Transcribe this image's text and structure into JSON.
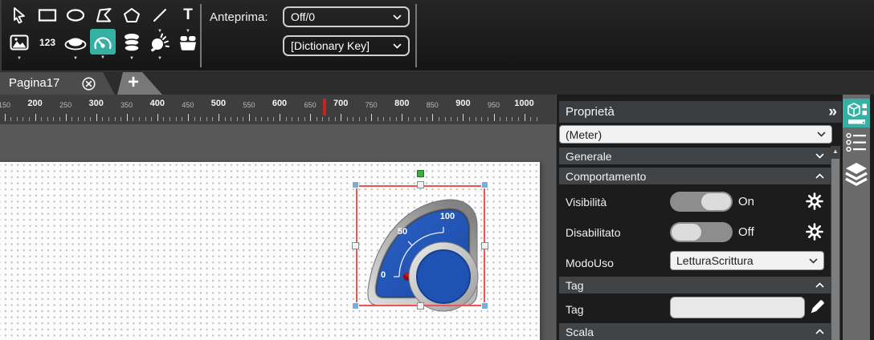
{
  "toolbar": {
    "preview_label": "Anteprima:",
    "preview_value": "Off/0",
    "dictionary_value": "[Dictionary Key]",
    "numeric_tool_label": "123",
    "text_tool_label": "T",
    "row1_tools": [
      "select",
      "rectangle",
      "ellipse",
      "polygon",
      "pentagon",
      "line",
      "text"
    ],
    "row2_tools": [
      "image",
      "numeric-display",
      "button",
      "meter",
      "database",
      "lamp",
      "basket"
    ],
    "selected_tool": "meter"
  },
  "tabs": {
    "page_label": "Pagina17",
    "add_label": "+"
  },
  "ruler": {
    "labels": [
      150,
      200,
      250,
      300,
      350,
      400,
      450,
      500,
      550,
      600,
      650,
      700,
      750,
      800,
      850,
      900,
      950,
      1000
    ],
    "marker_value": 673
  },
  "canvas": {
    "widget_type": "Meter",
    "gauge_scale": [
      "0",
      "50",
      "100"
    ]
  },
  "panel": {
    "title": "Proprietà",
    "collapse_glyph": "»",
    "selector_value": "(Meter)",
    "sections": {
      "general": "Generale",
      "behavior": "Comportamento",
      "tag": "Tag",
      "scale": "Scala"
    },
    "rows": {
      "visibility": {
        "label": "Visibilità",
        "state": "On"
      },
      "disabled": {
        "label": "Disabilitato",
        "state": "Off"
      },
      "usage_mode": {
        "label": "ModoUso",
        "value": "LetturaScrittura"
      },
      "tag": {
        "label": "Tag",
        "value": ""
      }
    }
  },
  "colors": {
    "accent_teal": "#35b0a2",
    "selection_red": "#ee5350",
    "gauge_blue": "#1e53b4",
    "needle_red": "#b31111",
    "ruler_marker_red": "#cf2020"
  }
}
